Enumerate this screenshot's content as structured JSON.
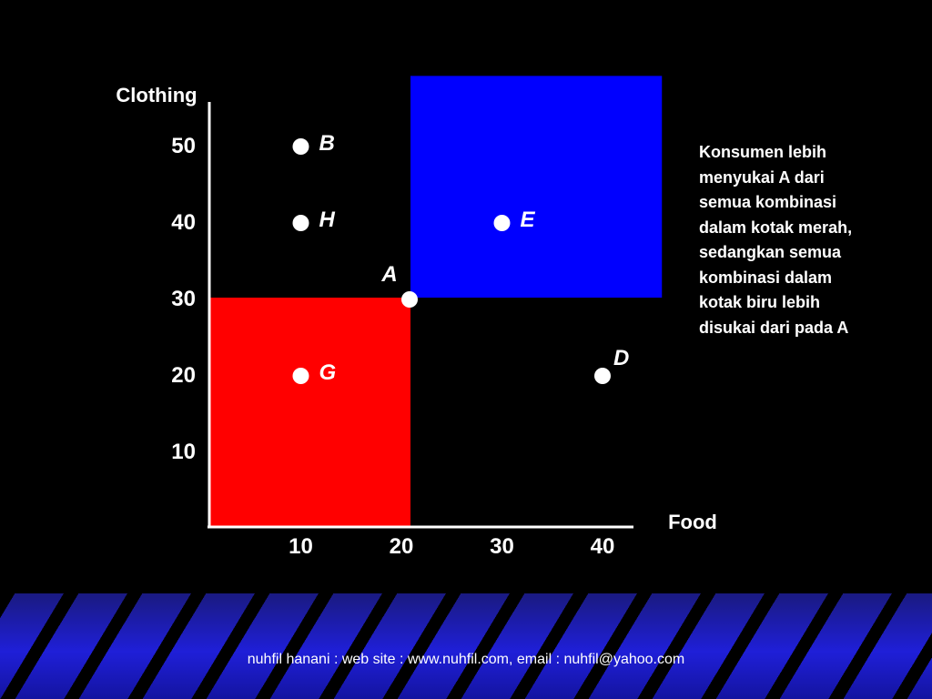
{
  "chart_data": {
    "type": "scatter",
    "xlabel": "Food",
    "ylabel": "Clothing",
    "xlim": [
      0,
      42
    ],
    "ylim": [
      0,
      54
    ],
    "x_ticks": [
      10,
      20,
      30,
      40
    ],
    "y_ticks": [
      10,
      20,
      30,
      40,
      50
    ],
    "grid": false,
    "points": [
      {
        "name": "B",
        "x": 10,
        "y": 50
      },
      {
        "name": "H",
        "x": 10,
        "y": 40
      },
      {
        "name": "E",
        "x": 30,
        "y": 40
      },
      {
        "name": "A",
        "x": 20,
        "y": 30
      },
      {
        "name": "G",
        "x": 10,
        "y": 20
      },
      {
        "name": "D",
        "x": 40,
        "y": 20
      }
    ],
    "regions": [
      {
        "color": "#ff0000",
        "x0": 0,
        "x1": 20,
        "y0": 0,
        "y1": 30
      },
      {
        "color": "#0000ff",
        "x0": 20,
        "x1": 45,
        "y0": 30,
        "y1": 59
      }
    ]
  },
  "note": "Konsumen lebih\nmenyukai A dari\nsemua kombinasi\ndalam kotak merah,\nsedangkan  semua\nkombinasi dalam\nkotak biru lebih\ndisukai dari pada A",
  "footer": "nuhfil hanani : web site : www.nuhfil.com, email : nuhfil@yahoo.com"
}
